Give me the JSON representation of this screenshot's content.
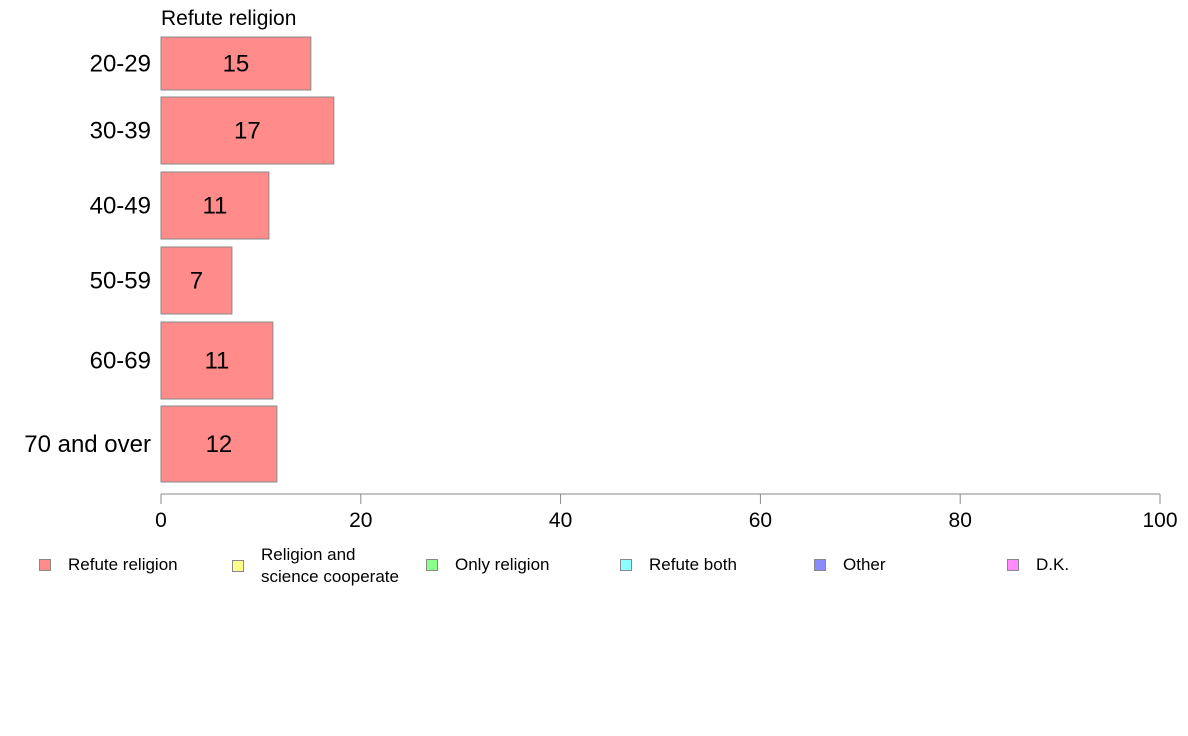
{
  "chart_data": {
    "type": "bar",
    "orientation": "horizontal",
    "title": "Refute religion",
    "categories": [
      "20-29",
      "30-39",
      "40-49",
      "50-59",
      "60-69",
      "70 and over"
    ],
    "series": [
      {
        "name": "Refute religion",
        "color": "#ff8b8b",
        "values": [
          15,
          17.3,
          10.8,
          7.1,
          11.2,
          11.6
        ],
        "labels": [
          "15",
          "17",
          "11",
          "7",
          "11",
          "12"
        ]
      }
    ],
    "xlim": [
      0,
      100
    ],
    "xticks": [
      "0",
      "20",
      "40",
      "60",
      "80",
      "100"
    ],
    "grid": false,
    "legend_position": "bottom",
    "legend": [
      {
        "label": "Refute religion",
        "color": "#ff8b8b"
      },
      {
        "label": "Religion and\nscience cooperate",
        "color": "#ffff8b"
      },
      {
        "label": "Only religion",
        "color": "#8bff8b"
      },
      {
        "label": "Refute both",
        "color": "#8bffff"
      },
      {
        "label": "Other",
        "color": "#8b8bff"
      },
      {
        "label": "D.K.",
        "color": "#ff8bff"
      }
    ]
  }
}
